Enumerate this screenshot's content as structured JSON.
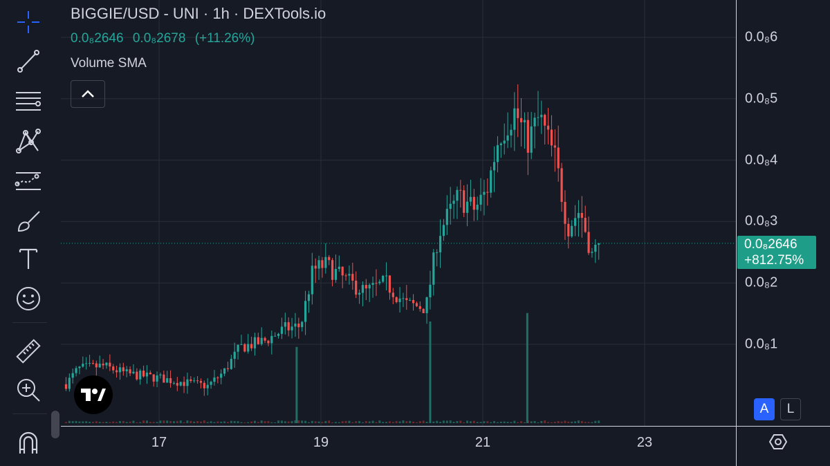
{
  "legend": {
    "title": "BIGGIE/USD - UNI · 1h · DEXTools.io",
    "open": "0.0₈2646",
    "close": "0.0₈2678",
    "change": "(+11.26%)",
    "indicator": "Volume SMA"
  },
  "price_label": {
    "price": "0.0₈2646",
    "change": "+812.75%",
    "color": "#1e9e88"
  },
  "scale_buttons": {
    "auto": "A",
    "log": "L"
  },
  "icons": {
    "toolbar": [
      "crosshair-icon",
      "trend-line-icon",
      "fib-retracement-icon",
      "pattern-icon",
      "prediction-icon",
      "brush-icon",
      "text-icon",
      "emoji-icon",
      "ruler-icon",
      "zoom-in-icon",
      "magnet-icon"
    ],
    "collapse": "chevron-up-icon",
    "settings": "settings-hexagon-icon",
    "logo": "tradingview-logo"
  },
  "colors": {
    "up": "#26a69a",
    "down": "#ef5350",
    "background": "#161a25",
    "accent": "#2962ff"
  },
  "chart_data": {
    "type": "candlestick",
    "title": "BIGGIE/USD - UNI · 1h · DEXTools.io",
    "y_tick_labels": [
      "0.0₈1",
      "0.0₈2",
      "0.0₈3",
      "0.0₈4",
      "0.0₈5",
      "0.0₈6"
    ],
    "y_ticks": [
      1,
      2,
      3,
      4,
      5,
      6
    ],
    "y_unit_note": "values in units of 1e-9 USD",
    "ylim": [
      0,
      6.5
    ],
    "x_tick_labels": [
      "17",
      "19",
      "21",
      "23"
    ],
    "x_ticks_day": [
      17,
      19,
      21,
      23
    ],
    "xlim_day": [
      15.8,
      23.0
    ],
    "last_price": 2.646,
    "grid": true,
    "price_trace": [
      [
        15.85,
        0.35
      ],
      [
        16.0,
        0.6
      ],
      [
        16.3,
        0.65
      ],
      [
        16.6,
        0.52
      ],
      [
        17.0,
        0.45
      ],
      [
        17.3,
        0.38
      ],
      [
        17.6,
        0.32
      ],
      [
        17.8,
        0.55
      ],
      [
        18.0,
        0.95
      ],
      [
        18.3,
        1.05
      ],
      [
        18.55,
        1.25
      ],
      [
        18.75,
        1.3
      ],
      [
        18.9,
        2.2
      ],
      [
        19.05,
        2.3
      ],
      [
        19.3,
        2.05
      ],
      [
        19.55,
        1.85
      ],
      [
        19.8,
        2.0
      ],
      [
        20.05,
        1.65
      ],
      [
        20.3,
        1.6
      ],
      [
        20.45,
        2.8
      ],
      [
        20.7,
        3.4
      ],
      [
        20.9,
        3.2
      ],
      [
        21.05,
        3.5
      ],
      [
        21.2,
        4.4
      ],
      [
        21.4,
        4.8
      ],
      [
        21.55,
        4.3
      ],
      [
        21.7,
        4.7
      ],
      [
        21.9,
        4.0
      ],
      [
        22.05,
        2.9
      ],
      [
        22.2,
        3.2
      ],
      [
        22.35,
        2.45
      ],
      [
        22.45,
        2.646
      ]
    ],
    "volume_spikes": [
      {
        "day": 18.7,
        "volume": 0.45
      },
      {
        "day": 20.35,
        "volume": 0.6
      },
      {
        "day": 21.55,
        "volume": 0.65
      }
    ],
    "indicators": [
      "Volume SMA"
    ]
  }
}
